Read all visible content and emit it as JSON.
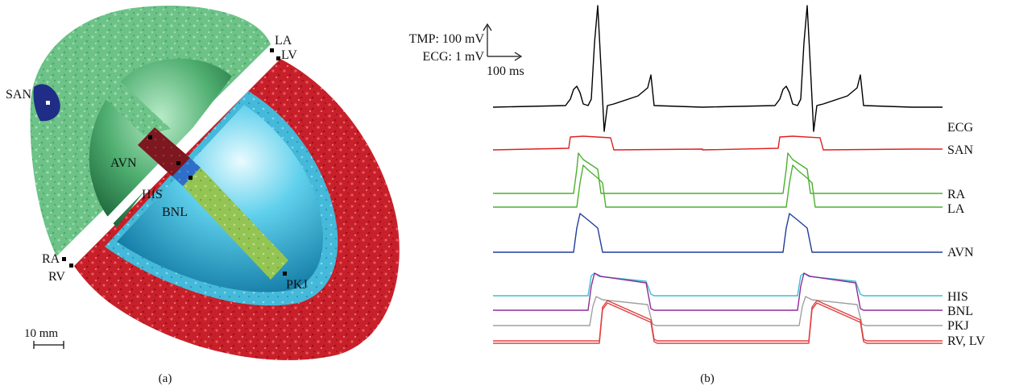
{
  "panel_a": {
    "caption": "(a)",
    "regions": {
      "SAN": "SAN",
      "LA": "LA",
      "LV": "LV",
      "AVN": "AVN",
      "HIS": "HIS",
      "BNL": "BNL",
      "RA": "RA",
      "RV": "RV",
      "PKJ": "PKJ"
    },
    "scale_bar": "10 mm",
    "colors": {
      "atria": "#5fb87a",
      "ventricle_wall": "#c8202a",
      "sinoatrial_node": "#1f2d86",
      "atrioventricular_node": "#7d1820",
      "his_bundle": "#2f6fc9",
      "bundle_branches": "#94c454",
      "ventricle_cavity": "#3db8d8",
      "atrial_cavity": "#3f9a60"
    }
  },
  "panel_b": {
    "caption": "(b)",
    "scale": {
      "tmp_label": "TMP: 100 mV",
      "ecg_label": "ECG: 1 mV",
      "time_label": "100 ms"
    },
    "traces": [
      {
        "label": "ECG",
        "color": "#000000"
      },
      {
        "label": "SAN",
        "color": "#e02020"
      },
      {
        "label": "RA",
        "color": "#4cb030"
      },
      {
        "label": "LA",
        "color": "#4cb030"
      },
      {
        "label": "AVN",
        "color": "#1f3c9c"
      },
      {
        "label": "HIS",
        "color": "#3cbfd0"
      },
      {
        "label": "BNL",
        "color": "#8e2a9a"
      },
      {
        "label": "PKJ",
        "color": "#a0a0a0"
      },
      {
        "label": "RV, LV",
        "color": "#e04040"
      }
    ]
  }
}
